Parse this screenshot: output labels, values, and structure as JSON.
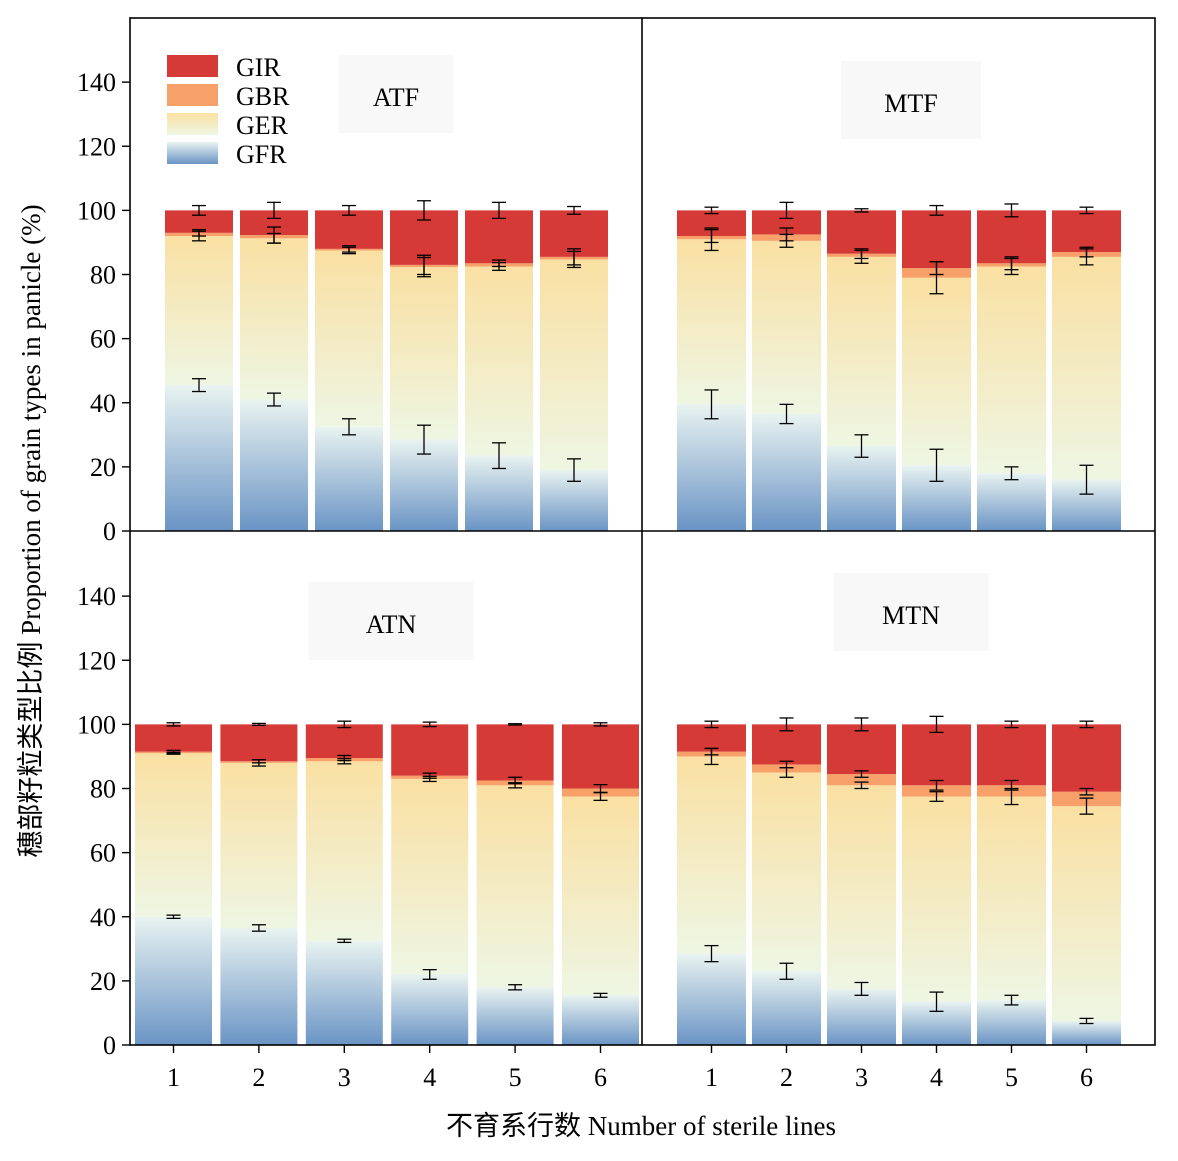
{
  "chart_data": {
    "type": "bar",
    "stacked": true,
    "xlabel": "不育系行数 Number of sterile lines",
    "ylabel": "穗部籽粒类型比例 Proportion of grain types in panicle (%)",
    "ylim": [
      0,
      160
    ],
    "yticks": [
      0,
      20,
      40,
      60,
      80,
      100,
      120,
      140
    ],
    "categories": [
      "1",
      "2",
      "3",
      "4",
      "5",
      "6"
    ],
    "legend": {
      "position": "top-left of first panel",
      "entries": [
        {
          "name": "GIR",
          "color": "#d63a36"
        },
        {
          "name": "GBR",
          "color": "#f7a06a"
        },
        {
          "name": "GER",
          "color": "#fae0a2"
        },
        {
          "name": "GFR",
          "color": "#6a94c5"
        }
      ]
    },
    "colors": {
      "GIR": "#d63a36",
      "GBR": "#f7a06a",
      "GER_top": "#fae0a2",
      "GER_bottom": "#eef6e3",
      "GFR_top": "#e9f3f1",
      "GFR_bottom": "#6a94c5"
    },
    "panels": [
      {
        "title": "ATF",
        "series": {
          "GFR": [
            45.5,
            41.0,
            32.5,
            28.5,
            23.5,
            19.0
          ],
          "GER": [
            46.5,
            50.3,
            55.0,
            53.8,
            59.0,
            65.7
          ],
          "GBR": [
            1.0,
            1.0,
            0.5,
            0.7,
            1.0,
            0.8
          ],
          "GIR": [
            7.0,
            7.7,
            12.0,
            17.0,
            16.5,
            14.5
          ]
        },
        "err_gfr": [
          2.0,
          2.0,
          2.5,
          4.5,
          4.0,
          3.5
        ],
        "err_cum3": [
          1.0,
          2.5,
          1.0,
          3.0,
          1.0,
          2.5
        ],
        "err_top": [
          1.5,
          2.5,
          1.5,
          3.0,
          2.5,
          1.2
        ],
        "err_ger_top": [
          1.5,
          1.5,
          1.0,
          3.0,
          1.2,
          2.5
        ]
      },
      {
        "title": "MTF",
        "series": {
          "GFR": [
            39.5,
            36.5,
            26.5,
            20.5,
            18.0,
            16.0
          ],
          "GER": [
            51.5,
            54.0,
            59.0,
            58.5,
            64.5,
            69.5
          ],
          "GBR": [
            1.0,
            2.0,
            1.0,
            3.0,
            1.0,
            1.5
          ],
          "GIR": [
            8.0,
            7.5,
            13.5,
            18.0,
            16.5,
            13.0
          ]
        },
        "err_gfr": [
          4.5,
          3.0,
          3.5,
          5.0,
          2.0,
          4.5
        ],
        "err_cum3": [
          2.0,
          2.0,
          1.5,
          2.0,
          2.0,
          1.5
        ],
        "err_top": [
          1.0,
          2.5,
          0.5,
          1.5,
          2.0,
          1.0
        ],
        "err_ger_top": [
          3.5,
          2.0,
          2.0,
          5.0,
          2.5,
          2.5
        ]
      },
      {
        "title": "ATN",
        "series": {
          "GFR": [
            40.0,
            36.5,
            32.5,
            22.0,
            18.0,
            15.5
          ],
          "GER": [
            51.0,
            51.5,
            56.0,
            61.0,
            63.0,
            62.0
          ],
          "GBR": [
            0.5,
            0.5,
            1.0,
            1.0,
            1.5,
            2.5
          ],
          "GIR": [
            8.5,
            11.5,
            10.5,
            16.0,
            17.5,
            20.0
          ]
        },
        "err_gfr": [
          0.5,
          1.0,
          0.5,
          1.5,
          0.8,
          0.6
        ],
        "err_cum3": [
          0.4,
          0.5,
          0.8,
          0.8,
          1.0,
          1.2
        ],
        "err_top": [
          0.5,
          0.3,
          1.0,
          0.7,
          0.2,
          0.5
        ],
        "err_ger_top": [
          0.3,
          1.0,
          0.8,
          0.8,
          0.8,
          1.2
        ]
      },
      {
        "title": "MTN",
        "series": {
          "GFR": [
            28.5,
            23.0,
            17.5,
            13.5,
            14.0,
            7.5
          ],
          "GER": [
            61.5,
            62.0,
            63.5,
            64.0,
            63.5,
            67.0
          ],
          "GBR": [
            1.5,
            2.5,
            3.5,
            3.5,
            3.5,
            4.5
          ],
          "GIR": [
            8.5,
            12.5,
            15.5,
            19.0,
            19.0,
            21.0
          ]
        },
        "err_gfr": [
          2.5,
          2.5,
          2.0,
          3.0,
          1.5,
          0.8
        ],
        "err_cum3": [
          1.0,
          1.0,
          1.0,
          1.5,
          1.5,
          1.0
        ],
        "err_top": [
          1.0,
          2.0,
          2.0,
          2.5,
          1.0,
          1.0
        ],
        "err_ger_top": [
          2.5,
          1.5,
          1.0,
          1.5,
          2.5,
          2.5
        ]
      }
    ]
  }
}
